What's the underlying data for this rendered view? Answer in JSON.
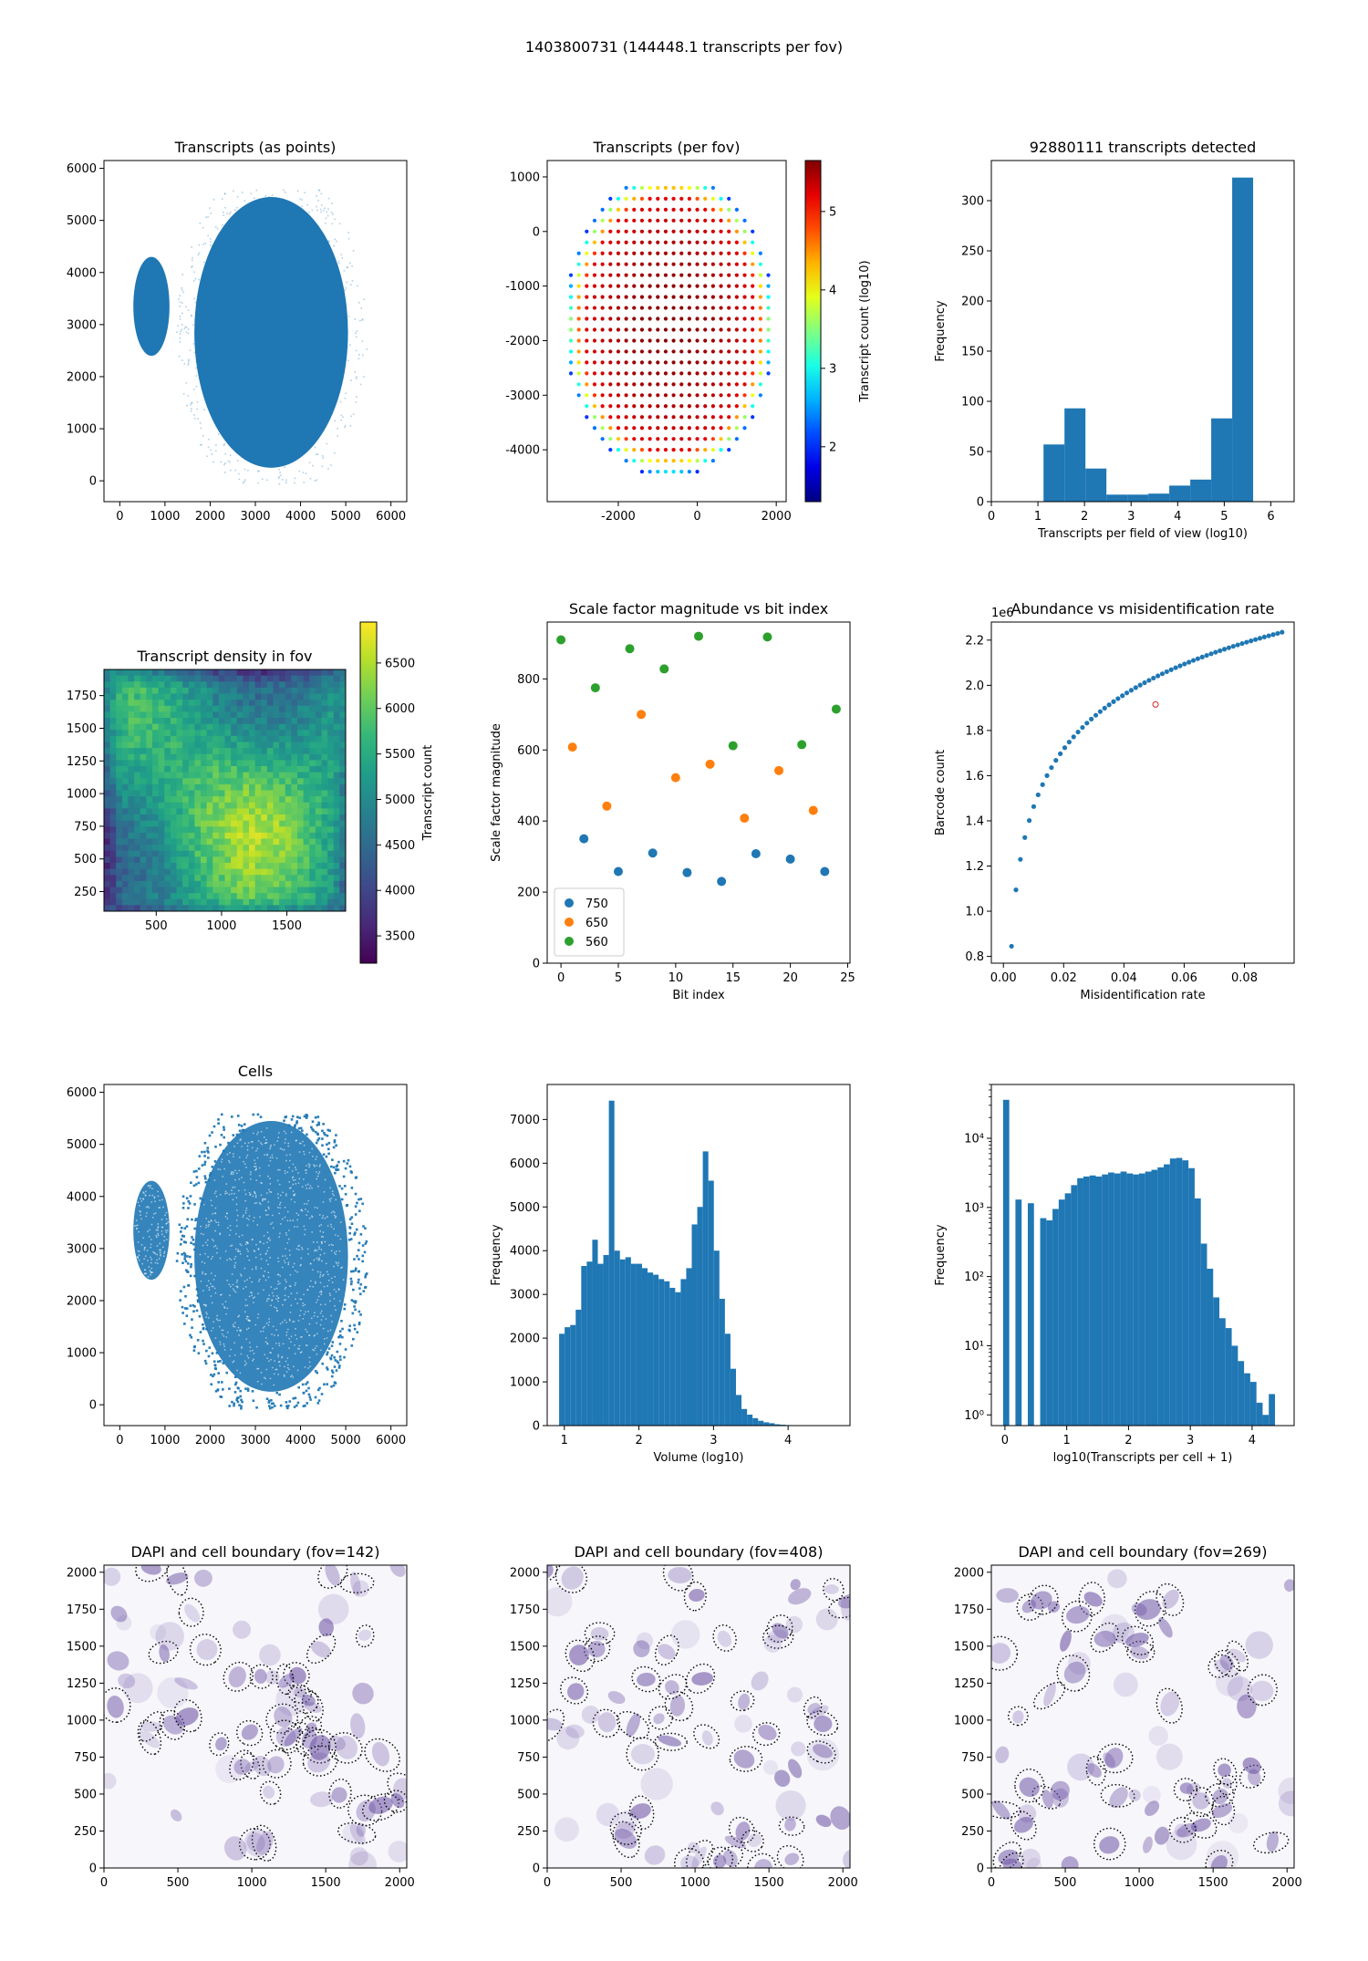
{
  "figure_title": "1403800731 (144448.1 transcripts per fov)",
  "colors": {
    "blue": "#1f77b4",
    "orange": "#ff7f0e",
    "green": "#2ca02c",
    "purple": "#6a51a3"
  },
  "chart_data": [
    {
      "id": "p1",
      "type": "scatter",
      "title": "Transcripts (as points)",
      "xlabel": "",
      "ylabel": "",
      "xlim": [
        -350,
        6350
      ],
      "ylim": [
        -400,
        6150
      ],
      "xticks": [
        0,
        1000,
        2000,
        3000,
        4000,
        5000,
        6000
      ],
      "yticks": [
        0,
        1000,
        2000,
        3000,
        4000,
        5000,
        6000
      ],
      "regions": [
        {
          "shape": "ellipse",
          "cx": 3350,
          "cy": 2850,
          "rx": 1700,
          "ry": 2600
        },
        {
          "shape": "ellipse",
          "cx": 700,
          "cy": 3350,
          "rx": 400,
          "ry": 950
        }
      ]
    },
    {
      "id": "p2",
      "type": "scatter",
      "title": "Transcripts (per fov)",
      "xlabel": "",
      "ylabel": "",
      "xlim": [
        -3800,
        2250
      ],
      "ylim": [
        -4950,
        1300
      ],
      "xticks": [
        -2000,
        0,
        2000
      ],
      "yticks": [
        1000,
        0,
        -1000,
        -2000,
        -3000,
        -4000
      ],
      "colorbar": {
        "label": "Transcript count (log10)",
        "min": 1.3,
        "max": 5.65,
        "ticks": [
          2,
          3,
          4,
          5
        ],
        "cmap": "jet"
      }
    },
    {
      "id": "p3",
      "type": "bar",
      "title": "92880111 transcripts detected",
      "xlabel": "Transcripts per field of view (log10)",
      "ylabel": "Frequency",
      "xlim": [
        0,
        6.5
      ],
      "ylim": [
        0,
        340
      ],
      "xticks": [
        0,
        1,
        2,
        3,
        4,
        5,
        6
      ],
      "yticks": [
        0,
        50,
        100,
        150,
        200,
        250,
        300
      ],
      "bin_edges": [
        1.12,
        1.57,
        2.02,
        2.47,
        2.92,
        3.37,
        3.82,
        4.27,
        4.72,
        5.17,
        5.62
      ],
      "values": [
        57,
        93,
        33,
        7,
        7,
        8,
        16,
        22,
        83,
        323
      ]
    },
    {
      "id": "p4",
      "type": "heatmap",
      "title": "Transcript density in fov",
      "xlabel": "",
      "ylabel": "",
      "xlim": [
        100,
        1950
      ],
      "ylim": [
        100,
        1950
      ],
      "xticks": [
        500,
        1000,
        1500
      ],
      "yticks": [
        250,
        500,
        750,
        1000,
        1250,
        1500,
        1750
      ],
      "colorbar": {
        "label": "Transcript count",
        "min": 3200,
        "max": 6950,
        "ticks": [
          3500,
          4000,
          4500,
          5000,
          5500,
          6000,
          6500
        ],
        "cmap": "viridis"
      }
    },
    {
      "id": "p5",
      "type": "scatter",
      "title": "Scale factor magnitude vs bit index",
      "xlabel": "Bit index",
      "ylabel": "Scale factor magnitude",
      "xlim": [
        -1.2,
        25.2
      ],
      "ylim": [
        0,
        960
      ],
      "xticks": [
        0,
        5,
        10,
        15,
        20,
        25
      ],
      "yticks": [
        0,
        200,
        400,
        600,
        800
      ],
      "legend": "lower-left",
      "series": [
        {
          "name": "750",
          "x": [
            2,
            5,
            8,
            11,
            14,
            17,
            20,
            23
          ],
          "y": [
            350,
            258,
            310,
            255,
            230,
            308,
            293,
            258
          ]
        },
        {
          "name": "650",
          "x": [
            1,
            4,
            7,
            10,
            13,
            16,
            19,
            22
          ],
          "y": [
            608,
            442,
            700,
            522,
            560,
            408,
            542,
            430
          ]
        },
        {
          "name": "560",
          "x": [
            0,
            3,
            6,
            9,
            12,
            15,
            18,
            21,
            24
          ],
          "y": [
            910,
            775,
            885,
            828,
            920,
            612,
            918,
            615,
            715
          ]
        }
      ]
    },
    {
      "id": "p6",
      "type": "scatter",
      "title": "Abundance vs misidentification rate",
      "xlabel": "Misidentification rate",
      "ylabel": "Barcode count",
      "y_offset_label": "1e6",
      "xlim": [
        -0.004,
        0.0965
      ],
      "ylim": [
        0.77,
        2.28
      ],
      "xticks": [
        0.0,
        0.02,
        0.04,
        0.06,
        0.08
      ],
      "yticks": [
        0.8,
        1.0,
        1.2,
        1.4,
        1.6,
        1.8,
        2.0,
        2.2
      ],
      "curve": {
        "x_start": 0.0027,
        "x_end": 0.0925,
        "y_start": 0.845,
        "y_end": 2.235,
        "points": 62
      },
      "highlight": {
        "x": 0.0505,
        "y": 1.915
      }
    },
    {
      "id": "p7",
      "type": "scatter",
      "title": "Cells",
      "xlabel": "",
      "ylabel": "",
      "xlim": [
        -350,
        6350
      ],
      "ylim": [
        -400,
        6150
      ],
      "xticks": [
        0,
        1000,
        2000,
        3000,
        4000,
        5000,
        6000
      ],
      "yticks": [
        0,
        1000,
        2000,
        3000,
        4000,
        5000,
        6000
      ],
      "regions": [
        {
          "shape": "ellipse",
          "cx": 3350,
          "cy": 2850,
          "rx": 1700,
          "ry": 2600
        },
        {
          "shape": "ellipse",
          "cx": 700,
          "cy": 3350,
          "rx": 400,
          "ry": 950
        }
      ]
    },
    {
      "id": "p8",
      "type": "bar",
      "title": "",
      "xlabel": "Volume (log10)",
      "ylabel": "Frequency",
      "xlim": [
        0.77,
        4.83
      ],
      "ylim": [
        0,
        7800
      ],
      "xticks": [
        1,
        2,
        3,
        4
      ],
      "yticks": [
        0,
        1000,
        2000,
        3000,
        4000,
        5000,
        6000,
        7000
      ],
      "bin_start": 0.93,
      "bin_width": 0.0741,
      "values": [
        2100,
        2250,
        2300,
        2650,
        3650,
        3750,
        4250,
        3700,
        3900,
        7430,
        4000,
        3800,
        3850,
        3700,
        3700,
        3600,
        3500,
        3450,
        3350,
        3300,
        3150,
        3050,
        3350,
        3600,
        4600,
        5000,
        6270,
        5600,
        4000,
        2900,
        2100,
        1300,
        700,
        380,
        250,
        170,
        110,
        75,
        55,
        30,
        20,
        12,
        8,
        5,
        3
      ]
    },
    {
      "id": "p9",
      "type": "bar",
      "title": "",
      "xlabel": "log10(Transcripts per cell + 1)",
      "ylabel": "Frequency",
      "yscale": "log",
      "xlim": [
        -0.22,
        4.68
      ],
      "ylim": [
        0.7,
        60000
      ],
      "xticks": [
        0,
        1,
        2,
        3,
        4
      ],
      "yticks": [
        1,
        10,
        100,
        1000,
        10000
      ],
      "ytick_labels": [
        "10⁰",
        "10¹",
        "10²",
        "10³",
        "10⁴"
      ],
      "bin_start": -0.03,
      "bin_width": 0.1,
      "values": [
        36000,
        0,
        1300,
        0,
        1150,
        0,
        700,
        650,
        950,
        1300,
        1600,
        2100,
        2650,
        2800,
        2900,
        2800,
        3000,
        3200,
        3100,
        3300,
        3100,
        3000,
        3100,
        3300,
        3500,
        3800,
        4200,
        5100,
        5200,
        4800,
        3700,
        1350,
        300,
        130,
        50,
        25,
        18,
        10,
        6,
        4,
        3,
        1.5,
        1,
        2
      ]
    },
    {
      "id": "p10",
      "type": "image",
      "title": "DAPI and cell boundary (fov=142)",
      "xlim": [
        0,
        2048
      ],
      "ylim": [
        0,
        2048
      ],
      "xticks": [
        0,
        500,
        1000,
        1500,
        2000
      ],
      "yticks": [
        0,
        250,
        500,
        750,
        1000,
        1250,
        1500,
        1750,
        2000
      ],
      "seed": 142
    },
    {
      "id": "p11",
      "type": "image",
      "title": "DAPI and cell boundary (fov=408)",
      "xlim": [
        0,
        2048
      ],
      "ylim": [
        0,
        2048
      ],
      "xticks": [
        0,
        500,
        1000,
        1500,
        2000
      ],
      "yticks": [
        0,
        250,
        500,
        750,
        1000,
        1250,
        1500,
        1750,
        2000
      ],
      "seed": 408
    },
    {
      "id": "p12",
      "type": "image",
      "title": "DAPI and cell boundary (fov=269)",
      "xlim": [
        0,
        2048
      ],
      "ylim": [
        0,
        2048
      ],
      "xticks": [
        0,
        500,
        1000,
        1500,
        2000
      ],
      "yticks": [
        0,
        250,
        500,
        750,
        1000,
        1250,
        1500,
        1750,
        2000
      ],
      "seed": 269
    }
  ]
}
